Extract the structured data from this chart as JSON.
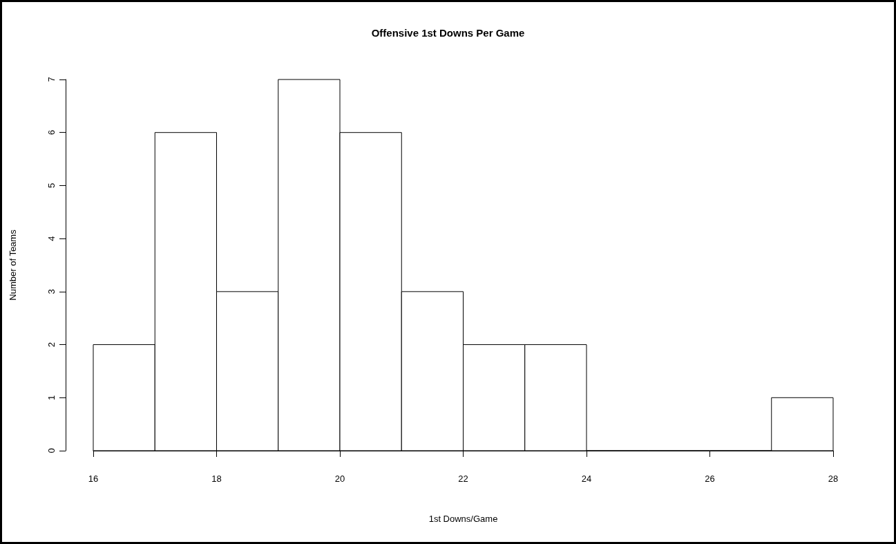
{
  "chart_data": {
    "type": "histogram",
    "title": "Offensive 1st Downs Per Game",
    "xlabel": "1st Downs/Game",
    "ylabel": "Number of Teams",
    "bins": [
      16,
      17,
      18,
      19,
      20,
      21,
      22,
      23,
      24,
      25,
      26,
      27,
      28
    ],
    "values": [
      2,
      6,
      3,
      7,
      6,
      3,
      2,
      2,
      0,
      0,
      0,
      1
    ],
    "color": "#ffffff",
    "xlim": [
      16,
      28
    ],
    "xticks": [
      16,
      18,
      20,
      22,
      24,
      26,
      28
    ],
    "ylim": [
      0,
      7
    ],
    "yticks": [
      0,
      1,
      2,
      3,
      4,
      5,
      6,
      7
    ],
    "grid": false
  }
}
